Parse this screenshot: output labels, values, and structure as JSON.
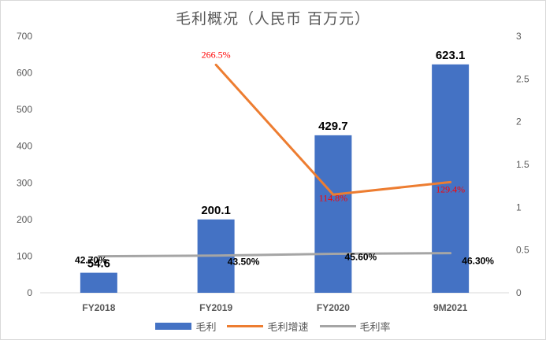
{
  "chart_data": {
    "type": "bar",
    "title": "毛利概况（人民币 百万元）",
    "categories": [
      "FY2018",
      "FY2019",
      "FY2020",
      "9M2021"
    ],
    "series": [
      {
        "name": "毛利",
        "type": "bar",
        "axis": "left",
        "values": [
          54.6,
          200.1,
          429.7,
          623.1
        ],
        "labels": [
          "54.6",
          "200.1",
          "429.7",
          "623.1"
        ],
        "color": "#4472c4"
      },
      {
        "name": "毛利增速",
        "type": "line",
        "axis": "right",
        "values": [
          null,
          2.665,
          1.148,
          1.294
        ],
        "labels": [
          "",
          "266.5%",
          "114.8%",
          "129.4%"
        ],
        "color": "#ed7d31"
      },
      {
        "name": "毛利率",
        "type": "line",
        "axis": "right",
        "values": [
          0.427,
          0.435,
          0.456,
          0.463
        ],
        "labels": [
          "42.70%",
          "43.50%",
          "45.60%",
          "46.30%"
        ],
        "color": "#a5a5a5"
      }
    ],
    "ylim_left": [
      0,
      700
    ],
    "ylim_right": [
      0,
      3
    ],
    "yticks_left": [
      "0",
      "100",
      "200",
      "300",
      "400",
      "500",
      "600",
      "700"
    ],
    "yticks_right": [
      "0",
      "0.5",
      "1",
      "1.5",
      "2",
      "2.5",
      "3"
    ],
    "grid": false,
    "legend_position": "bottom"
  }
}
